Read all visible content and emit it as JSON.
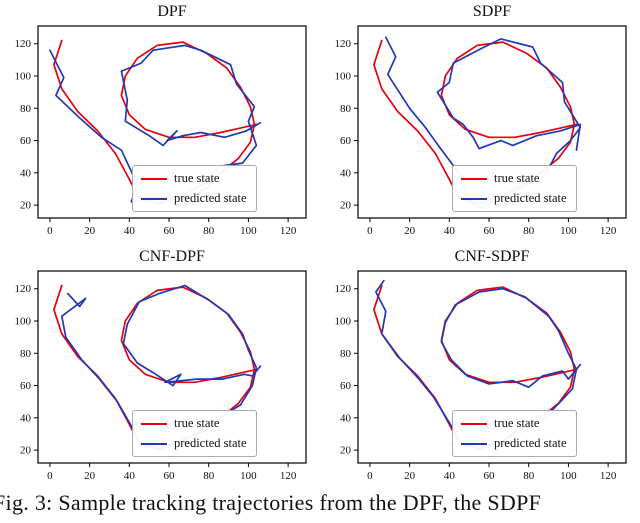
{
  "colors": {
    "true_state": "#e8000d",
    "predicted_state": "#2139b5",
    "axis": "#000000",
    "background": "#ffffff"
  },
  "legend": {
    "items": [
      {
        "label": "true state",
        "color": "#e8000d"
      },
      {
        "label": "predicted state",
        "color": "#2139b5"
      }
    ]
  },
  "caption": {
    "text": "Fig. 3: Sample tracking trajectories from the DPF, the SDPF"
  },
  "chart_data": [
    {
      "type": "line",
      "title": "DPF",
      "xlim": [
        -6,
        129
      ],
      "ylim": [
        12,
        131
      ],
      "xticks": [
        0,
        20,
        40,
        60,
        80,
        100,
        120
      ],
      "yticks": [
        20,
        40,
        60,
        80,
        100,
        120
      ],
      "legend_position": "lower center-right",
      "series": [
        {
          "name": "true state",
          "color": "#e8000d",
          "points": [
            [
              6,
              122
            ],
            [
              2,
              107
            ],
            [
              6,
              92
            ],
            [
              14,
              78
            ],
            [
              24,
              66
            ],
            [
              33,
              52
            ],
            [
              40,
              36
            ],
            [
              45,
              24
            ],
            [
              55,
              21
            ],
            [
              66,
              25
            ],
            [
              77,
              33
            ],
            [
              87,
              41
            ],
            [
              95,
              49
            ],
            [
              101,
              59
            ],
            [
              103,
              70
            ],
            [
              101,
              81
            ],
            [
              96,
              93
            ],
            [
              89,
              105
            ],
            [
              79,
              114
            ],
            [
              67,
              121
            ],
            [
              54,
              119
            ],
            [
              44,
              111
            ],
            [
              38,
              100
            ],
            [
              36,
              88
            ],
            [
              40,
              76
            ],
            [
              48,
              67
            ],
            [
              60,
              62
            ],
            [
              73,
              62
            ],
            [
              86,
              65
            ],
            [
              97,
              68
            ],
            [
              104,
              70
            ]
          ]
        },
        {
          "name": "predicted state",
          "color": "#2139b5",
          "points": [
            [
              0,
              116
            ],
            [
              7,
              99
            ],
            [
              3,
              88
            ],
            [
              15,
              74
            ],
            [
              26,
              62
            ],
            [
              36,
              54
            ],
            [
              44,
              33
            ],
            [
              41,
              22
            ],
            [
              52,
              25
            ],
            [
              67,
              24
            ],
            [
              80,
              31
            ],
            [
              85,
              44
            ],
            [
              97,
              46
            ],
            [
              104,
              57
            ],
            [
              100,
              72
            ],
            [
              103,
              81
            ],
            [
              94,
              95
            ],
            [
              91,
              107
            ],
            [
              76,
              116
            ],
            [
              68,
              119
            ],
            [
              52,
              116
            ],
            [
              46,
              108
            ],
            [
              36,
              103
            ],
            [
              39,
              85
            ],
            [
              38,
              72
            ],
            [
              50,
              63
            ],
            [
              57,
              57
            ],
            [
              64,
              66
            ],
            [
              59,
              60
            ],
            [
              67,
              63
            ],
            [
              76,
              65
            ],
            [
              88,
              62
            ],
            [
              99,
              66
            ],
            [
              106,
              71
            ]
          ]
        }
      ]
    },
    {
      "type": "line",
      "title": "SDPF",
      "xlim": [
        -6,
        129
      ],
      "ylim": [
        12,
        131
      ],
      "xticks": [
        0,
        20,
        40,
        60,
        80,
        100,
        120
      ],
      "yticks": [
        20,
        40,
        60,
        80,
        100,
        120
      ],
      "legend_position": "lower center-right",
      "series": [
        {
          "name": "true state",
          "color": "#e8000d",
          "points": [
            [
              6,
              122
            ],
            [
              2,
              107
            ],
            [
              6,
              92
            ],
            [
              14,
              78
            ],
            [
              24,
              66
            ],
            [
              33,
              52
            ],
            [
              40,
              36
            ],
            [
              45,
              24
            ],
            [
              55,
              21
            ],
            [
              66,
              25
            ],
            [
              77,
              33
            ],
            [
              87,
              41
            ],
            [
              95,
              49
            ],
            [
              101,
              59
            ],
            [
              103,
              70
            ],
            [
              101,
              81
            ],
            [
              96,
              93
            ],
            [
              89,
              105
            ],
            [
              79,
              114
            ],
            [
              67,
              121
            ],
            [
              54,
              119
            ],
            [
              44,
              111
            ],
            [
              38,
              100
            ],
            [
              36,
              88
            ],
            [
              40,
              76
            ],
            [
              48,
              67
            ],
            [
              60,
              62
            ],
            [
              73,
              62
            ],
            [
              86,
              65
            ],
            [
              97,
              68
            ],
            [
              104,
              70
            ]
          ]
        },
        {
          "name": "predicted state",
          "color": "#2139b5",
          "points": [
            [
              8,
              124
            ],
            [
              13,
              112
            ],
            [
              9,
              101
            ],
            [
              20,
              80
            ],
            [
              28,
              68
            ],
            [
              35,
              56
            ],
            [
              46,
              38
            ],
            [
              50,
              22
            ],
            [
              56,
              18
            ],
            [
              64,
              24
            ],
            [
              75,
              30
            ],
            [
              88,
              38
            ],
            [
              94,
              52
            ],
            [
              101,
              60
            ],
            [
              106,
              68
            ],
            [
              98,
              84
            ],
            [
              97,
              96
            ],
            [
              86,
              108
            ],
            [
              82,
              118
            ],
            [
              66,
              123
            ],
            [
              56,
              117
            ],
            [
              42,
              108
            ],
            [
              40,
              96
            ],
            [
              34,
              90
            ],
            [
              42,
              74
            ],
            [
              47,
              70
            ],
            [
              52,
              62
            ],
            [
              55,
              55
            ],
            [
              66,
              60
            ],
            [
              72,
              57
            ],
            [
              84,
              63
            ],
            [
              96,
              66
            ],
            [
              106,
              70
            ],
            [
              104,
              54
            ]
          ]
        }
      ]
    },
    {
      "type": "line",
      "title": "CNF-DPF",
      "xlim": [
        -6,
        129
      ],
      "ylim": [
        12,
        131
      ],
      "xticks": [
        0,
        20,
        40,
        60,
        80,
        100,
        120
      ],
      "yticks": [
        20,
        40,
        60,
        80,
        100,
        120
      ],
      "legend_position": "lower center-right",
      "series": [
        {
          "name": "true state",
          "color": "#e8000d",
          "points": [
            [
              6,
              122
            ],
            [
              2,
              107
            ],
            [
              6,
              92
            ],
            [
              14,
              78
            ],
            [
              24,
              66
            ],
            [
              33,
              52
            ],
            [
              40,
              36
            ],
            [
              45,
              24
            ],
            [
              55,
              21
            ],
            [
              66,
              25
            ],
            [
              77,
              33
            ],
            [
              87,
              41
            ],
            [
              95,
              49
            ],
            [
              101,
              59
            ],
            [
              103,
              70
            ],
            [
              101,
              81
            ],
            [
              96,
              93
            ],
            [
              89,
              105
            ],
            [
              79,
              114
            ],
            [
              67,
              121
            ],
            [
              54,
              119
            ],
            [
              44,
              111
            ],
            [
              38,
              100
            ],
            [
              36,
              88
            ],
            [
              40,
              76
            ],
            [
              48,
              67
            ],
            [
              60,
              62
            ],
            [
              73,
              62
            ],
            [
              86,
              65
            ],
            [
              97,
              68
            ],
            [
              104,
              70
            ]
          ]
        },
        {
          "name": "predicted state",
          "color": "#2139b5",
          "points": [
            [
              9,
              117
            ],
            [
              15,
              109
            ],
            [
              18,
              114
            ],
            [
              6,
              103
            ],
            [
              8,
              90
            ],
            [
              16,
              76
            ],
            [
              25,
              64
            ],
            [
              34,
              50
            ],
            [
              41,
              35
            ],
            [
              46,
              23
            ],
            [
              56,
              20
            ],
            [
              66,
              26
            ],
            [
              78,
              32
            ],
            [
              88,
              42
            ],
            [
              96,
              48
            ],
            [
              102,
              60
            ],
            [
              104,
              71
            ],
            [
              100,
              82
            ],
            [
              97,
              92
            ],
            [
              90,
              104
            ],
            [
              80,
              113
            ],
            [
              68,
              122
            ],
            [
              55,
              117
            ],
            [
              45,
              112
            ],
            [
              39,
              98
            ],
            [
              37,
              86
            ],
            [
              44,
              74
            ],
            [
              52,
              68
            ],
            [
              62,
              60
            ],
            [
              66,
              67
            ],
            [
              58,
              62
            ],
            [
              74,
              64
            ],
            [
              87,
              64
            ],
            [
              98,
              67
            ],
            [
              102,
              66
            ],
            [
              106,
              72
            ]
          ]
        }
      ]
    },
    {
      "type": "line",
      "title": "CNF-SDPF",
      "xlim": [
        -6,
        129
      ],
      "ylim": [
        12,
        131
      ],
      "xticks": [
        0,
        20,
        40,
        60,
        80,
        100,
        120
      ],
      "yticks": [
        20,
        40,
        60,
        80,
        100,
        120
      ],
      "legend_position": "lower center-right",
      "series": [
        {
          "name": "true state",
          "color": "#e8000d",
          "points": [
            [
              6,
              122
            ],
            [
              2,
              107
            ],
            [
              6,
              92
            ],
            [
              14,
              78
            ],
            [
              24,
              66
            ],
            [
              33,
              52
            ],
            [
              40,
              36
            ],
            [
              45,
              24
            ],
            [
              55,
              21
            ],
            [
              66,
              25
            ],
            [
              77,
              33
            ],
            [
              87,
              41
            ],
            [
              95,
              49
            ],
            [
              101,
              59
            ],
            [
              103,
              70
            ],
            [
              101,
              81
            ],
            [
              96,
              93
            ],
            [
              89,
              105
            ],
            [
              79,
              114
            ],
            [
              67,
              121
            ],
            [
              54,
              119
            ],
            [
              44,
              111
            ],
            [
              38,
              100
            ],
            [
              36,
              88
            ],
            [
              40,
              76
            ],
            [
              48,
              67
            ],
            [
              60,
              62
            ],
            [
              73,
              62
            ],
            [
              86,
              65
            ],
            [
              97,
              68
            ],
            [
              104,
              70
            ]
          ]
        },
        {
          "name": "predicted state",
          "color": "#2139b5",
          "points": [
            [
              7,
              125
            ],
            [
              3,
              118
            ],
            [
              8,
              106
            ],
            [
              6,
              92
            ],
            [
              15,
              77
            ],
            [
              24,
              65
            ],
            [
              32,
              53
            ],
            [
              40,
              37
            ],
            [
              46,
              25
            ],
            [
              55,
              20
            ],
            [
              67,
              26
            ],
            [
              77,
              34
            ],
            [
              88,
              40
            ],
            [
              96,
              50
            ],
            [
              102,
              58
            ],
            [
              104,
              70
            ],
            [
              100,
              80
            ],
            [
              95,
              94
            ],
            [
              90,
              103
            ],
            [
              78,
              115
            ],
            [
              67,
              120
            ],
            [
              55,
              118
            ],
            [
              43,
              110
            ],
            [
              38,
              99
            ],
            [
              36,
              87
            ],
            [
              41,
              76
            ],
            [
              49,
              66
            ],
            [
              60,
              61
            ],
            [
              72,
              63
            ],
            [
              80,
              59
            ],
            [
              87,
              66
            ],
            [
              97,
              69
            ],
            [
              100,
              64
            ],
            [
              106,
              73
            ]
          ]
        }
      ]
    }
  ]
}
